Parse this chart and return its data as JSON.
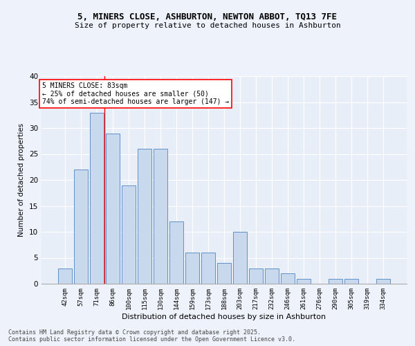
{
  "title1": "5, MINERS CLOSE, ASHBURTON, NEWTON ABBOT, TQ13 7FE",
  "title2": "Size of property relative to detached houses in Ashburton",
  "xlabel": "Distribution of detached houses by size in Ashburton",
  "ylabel": "Number of detached properties",
  "bar_color": "#c8d8ed",
  "bar_edge_color": "#6090c8",
  "background_color": "#e8eef8",
  "grid_color": "#ffffff",
  "fig_background": "#eef2fa",
  "categories": [
    "42sqm",
    "57sqm",
    "71sqm",
    "86sqm",
    "100sqm",
    "115sqm",
    "130sqm",
    "144sqm",
    "159sqm",
    "173sqm",
    "188sqm",
    "203sqm",
    "217sqm",
    "232sqm",
    "246sqm",
    "261sqm",
    "276sqm",
    "290sqm",
    "305sqm",
    "319sqm",
    "334sqm"
  ],
  "values": [
    3,
    22,
    33,
    29,
    19,
    26,
    26,
    12,
    6,
    6,
    4,
    10,
    3,
    3,
    2,
    1,
    0,
    1,
    1,
    0,
    1
  ],
  "annotation_line1": "5 MINERS CLOSE: 83sqm",
  "annotation_line2": "← 25% of detached houses are smaller (50)",
  "annotation_line3": "74% of semi-detached houses are larger (147) →",
  "vline_position": 2.5,
  "ylim": [
    0,
    40
  ],
  "yticks": [
    0,
    5,
    10,
    15,
    20,
    25,
    30,
    35,
    40
  ],
  "footer1": "Contains HM Land Registry data © Crown copyright and database right 2025.",
  "footer2": "Contains public sector information licensed under the Open Government Licence v3.0."
}
